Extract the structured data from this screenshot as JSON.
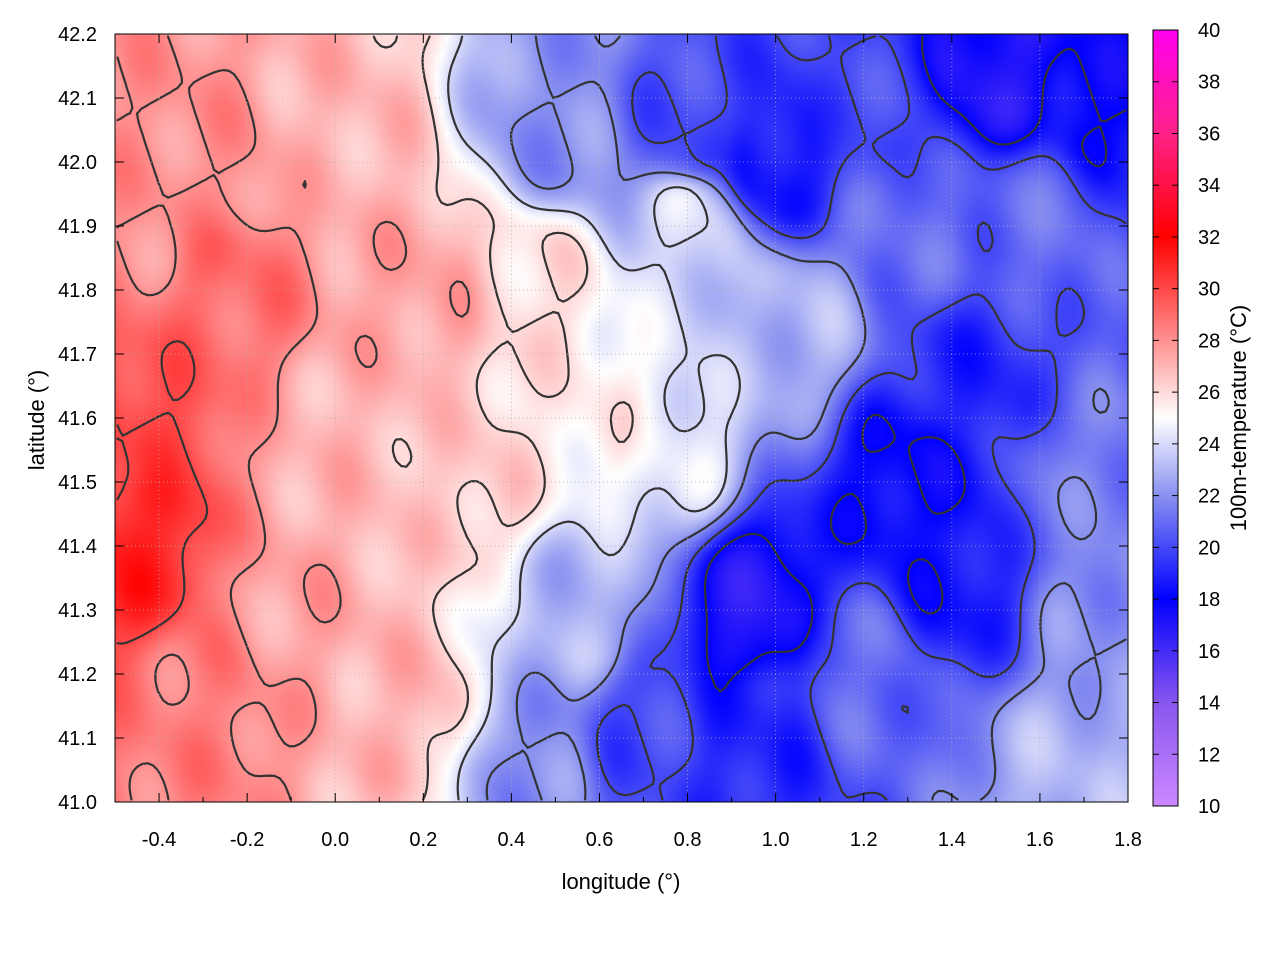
{
  "chart_data": {
    "type": "heatmap",
    "title": "",
    "xlabel": "longitude (°)",
    "ylabel": "latitude (°)",
    "colorbar_label": "100m-temperature (°C)",
    "xlim": [
      -0.5,
      1.8
    ],
    "ylim": [
      41.0,
      42.2
    ],
    "x_ticks": [
      -0.4,
      -0.2,
      0.0,
      0.2,
      0.4,
      0.6,
      0.8,
      1.0,
      1.2,
      1.4,
      1.6,
      1.8
    ],
    "x_tick_labels": [
      "-0.4",
      "-0.2",
      "0.0",
      "0.2",
      "0.4",
      "0.6",
      "0.8",
      "1.0",
      "1.2",
      "1.4",
      "1.6",
      "1.8"
    ],
    "y_ticks": [
      41.0,
      41.1,
      41.2,
      41.3,
      41.4,
      41.5,
      41.6,
      41.7,
      41.8,
      41.9,
      42.0,
      42.1,
      42.2
    ],
    "y_tick_labels": [
      "41.0",
      "41.1",
      "41.2",
      "41.3",
      "41.4",
      "41.5",
      "41.6",
      "41.7",
      "41.8",
      "41.9",
      "42.0",
      "42.1",
      "42.2"
    ],
    "colorbar_range": [
      10,
      40
    ],
    "colorbar_ticks": [
      10,
      12,
      14,
      16,
      18,
      20,
      22,
      24,
      26,
      28,
      30,
      32,
      34,
      36,
      38,
      40
    ],
    "colorbar_tick_labels": [
      "10",
      "12",
      "14",
      "16",
      "18",
      "20",
      "22",
      "24",
      "26",
      "28",
      "30",
      "32",
      "34",
      "36",
      "38",
      "40"
    ],
    "colormap_stops": [
      {
        "value": 10,
        "color": "#cc88ff"
      },
      {
        "value": 14,
        "color": "#8855ee"
      },
      {
        "value": 18,
        "color": "#0000ff"
      },
      {
        "value": 22,
        "color": "#8890f0"
      },
      {
        "value": 25,
        "color": "#ffffff"
      },
      {
        "value": 28,
        "color": "#ff9090"
      },
      {
        "value": 32,
        "color": "#ff0000"
      },
      {
        "value": 36,
        "color": "#ff2288"
      },
      {
        "value": 40,
        "color": "#ff00ee"
      }
    ],
    "grid": true,
    "contours": true,
    "field_summary": "warm (26-31 °C) over the west, cool (15-22 °C) over the east and north-east",
    "samples": [
      {
        "lon": -0.45,
        "lat": 41.4,
        "t": 31
      },
      {
        "lon": -0.45,
        "lat": 41.6,
        "t": 30
      },
      {
        "lon": -0.45,
        "lat": 41.9,
        "t": 28
      },
      {
        "lon": -0.3,
        "lat": 41.15,
        "t": 28.5
      },
      {
        "lon": -0.25,
        "lat": 41.8,
        "t": 29
      },
      {
        "lon": -0.3,
        "lat": 42.0,
        "t": 28
      },
      {
        "lon": -0.1,
        "lat": 41.3,
        "t": 27.5
      },
      {
        "lon": 0.0,
        "lat": 41.55,
        "t": 27
      },
      {
        "lon": 0.0,
        "lat": 42.05,
        "t": 27
      },
      {
        "lon": 0.2,
        "lat": 41.8,
        "t": 27.5
      },
      {
        "lon": 0.15,
        "lat": 41.15,
        "t": 27
      },
      {
        "lon": 0.3,
        "lat": 41.5,
        "t": 26.5
      },
      {
        "lon": 0.45,
        "lat": 41.8,
        "t": 26
      },
      {
        "lon": 0.45,
        "lat": 41.05,
        "t": 22
      },
      {
        "lon": 0.55,
        "lat": 41.3,
        "t": 23
      },
      {
        "lon": 0.6,
        "lat": 41.6,
        "t": 25.5
      },
      {
        "lon": 0.5,
        "lat": 42.05,
        "t": 22
      },
      {
        "lon": 0.7,
        "lat": 41.1,
        "t": 20
      },
      {
        "lon": 0.8,
        "lat": 41.9,
        "t": 24
      },
      {
        "lon": 0.8,
        "lat": 42.05,
        "t": 20
      },
      {
        "lon": 0.75,
        "lat": 41.55,
        "t": 24.5
      },
      {
        "lon": 0.95,
        "lat": 41.3,
        "t": 17
      },
      {
        "lon": 0.95,
        "lat": 41.1,
        "t": 19
      },
      {
        "lon": 1.0,
        "lat": 42.0,
        "t": 18.5
      },
      {
        "lon": 1.05,
        "lat": 41.75,
        "t": 23
      },
      {
        "lon": 1.2,
        "lat": 41.2,
        "t": 21
      },
      {
        "lon": 1.3,
        "lat": 41.5,
        "t": 18
      },
      {
        "lon": 1.45,
        "lat": 41.65,
        "t": 19
      },
      {
        "lon": 1.4,
        "lat": 41.35,
        "t": 18.5
      },
      {
        "lon": 1.3,
        "lat": 41.9,
        "t": 21
      },
      {
        "lon": 1.5,
        "lat": 42.15,
        "t": 17
      },
      {
        "lon": 1.6,
        "lat": 41.9,
        "t": 21
      },
      {
        "lon": 1.7,
        "lat": 41.5,
        "t": 21.5
      },
      {
        "lon": 1.65,
        "lat": 41.05,
        "t": 23
      },
      {
        "lon": 1.75,
        "lat": 41.3,
        "t": 22
      },
      {
        "lon": 1.75,
        "lat": 42.1,
        "t": 18
      },
      {
        "lon": 1.2,
        "lat": 42.1,
        "t": 20
      }
    ]
  }
}
